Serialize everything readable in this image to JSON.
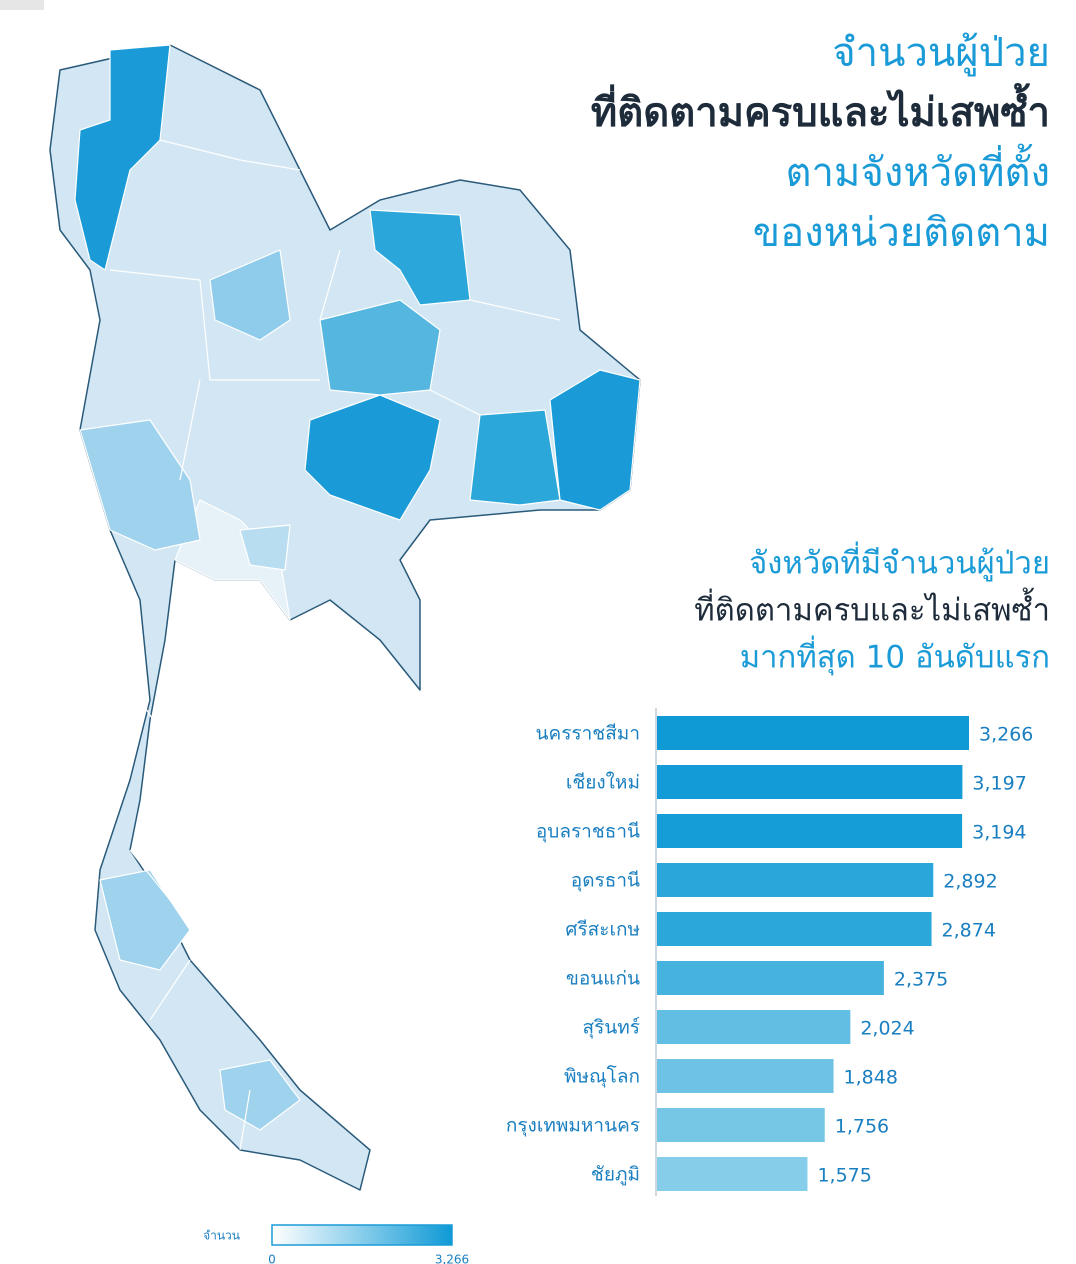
{
  "chart_data": {
    "type": "bar",
    "title": [
      "จำนวนผู้ป่วย",
      "ที่ติดตามครบและไม่เสพซ้ำ",
      "ตามจังหวัดที่ตั้ง",
      "ของหน่วยติดตาม"
    ],
    "subtitle": [
      "จังหวัดที่มีจำนวนผู้ป่วย",
      "ที่ติดตามครบและไม่เสพซ้ำ",
      "มากที่สุด 10 อันดับแรก"
    ],
    "categories": [
      "นครราชสีมา",
      "เชียงใหม่",
      "อุบลราชธานี",
      "อุดรธานี",
      "ศรีสะเกษ",
      "ขอนแก่น",
      "สุรินทร์",
      "พิษณุโลก",
      "กรุงเทพมหานคร",
      "ชัยภูมิ"
    ],
    "values": [
      3266,
      3197,
      3194,
      2892,
      2874,
      2375,
      2024,
      1848,
      1756,
      1575
    ],
    "value_labels": [
      "3,266",
      "3,197",
      "3,194",
      "2,892",
      "2,874",
      "2,375",
      "2,024",
      "1,848",
      "1,756",
      "1,575"
    ],
    "colors": [
      "#0f9ad6",
      "#129bd6",
      "#159dd7",
      "#2aa6da",
      "#2ca7da",
      "#46b2de",
      "#62bee3",
      "#6ec3e5",
      "#76c6e6",
      "#86cdea"
    ],
    "legend": {
      "title": "จำนวน",
      "min": 0,
      "max": {
        "value": 3266,
        "label": "3,266"
      },
      "colors": [
        "#ffffff",
        "#0f9ad6"
      ]
    }
  }
}
